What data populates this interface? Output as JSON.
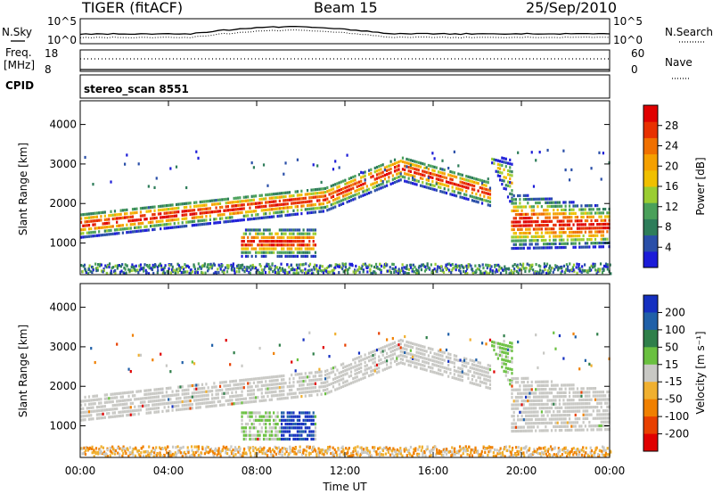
{
  "header": {
    "radar": "TIGER (fitACF)",
    "beam": "Beam 15",
    "date": "25/Sep/2010"
  },
  "top_panels": {
    "nsky_label": "N.Sky",
    "nsearch_label": "N.Search",
    "noise_ticks_left": [
      "10^5",
      "10^0"
    ],
    "noise_ticks_right": [
      "10^5",
      "10^0"
    ],
    "freq_label_1": "Freq.",
    "freq_label_2": "[MHz]",
    "freq_ticks": [
      "18",
      "8"
    ],
    "nave_ticks": [
      "60",
      "0"
    ],
    "nave_label": "Nave",
    "cpid_label": "CPID",
    "cpid_value": "stereo_scan 8551"
  },
  "colors": {
    "power_scale": [
      "#1c1cd8",
      "#2a4fa8",
      "#2e7d5a",
      "#4aa05a",
      "#9acd32",
      "#f0c000",
      "#f5a000",
      "#f07000",
      "#e83000",
      "#e00000"
    ],
    "velocity_scale": [
      "#1530c0",
      "#2060a8",
      "#2f7f4a",
      "#6ac040",
      "#c8c8c4",
      "#f0b030",
      "#f08000",
      "#e84000",
      "#e00000"
    ]
  },
  "chart_data": [
    {
      "type": "heatmap",
      "title": "",
      "ylabel": "Slant Range [km]",
      "xlabel": "",
      "x_ticks": [
        "00:00",
        "04:00",
        "08:00",
        "12:00",
        "16:00",
        "20:00",
        "00:00"
      ],
      "y_ticks": [
        "1000",
        "2000",
        "3000",
        "4000"
      ],
      "ylim": [
        200,
        4600
      ],
      "xlim_hours": [
        0,
        24
      ],
      "colorbar": {
        "label": "Power [dB]",
        "ticks": [
          "4",
          "8",
          "12",
          "16",
          "20",
          "24",
          "28"
        ],
        "range": [
          0,
          32
        ]
      }
    },
    {
      "type": "heatmap",
      "title": "",
      "ylabel": "Slant Range [km]",
      "xlabel": "Time UT",
      "x_ticks": [
        "00:00",
        "04:00",
        "08:00",
        "12:00",
        "16:00",
        "20:00",
        "00:00"
      ],
      "y_ticks": [
        "1000",
        "2000",
        "3000",
        "4000"
      ],
      "ylim": [
        200,
        4600
      ],
      "xlim_hours": [
        0,
        24
      ],
      "colorbar": {
        "label": "Velocity [m s⁻¹]",
        "ticks": [
          "200",
          "100",
          "50",
          "15",
          "-15",
          "-50",
          "-100",
          "-200"
        ],
        "range": [
          -250,
          250
        ]
      }
    }
  ]
}
